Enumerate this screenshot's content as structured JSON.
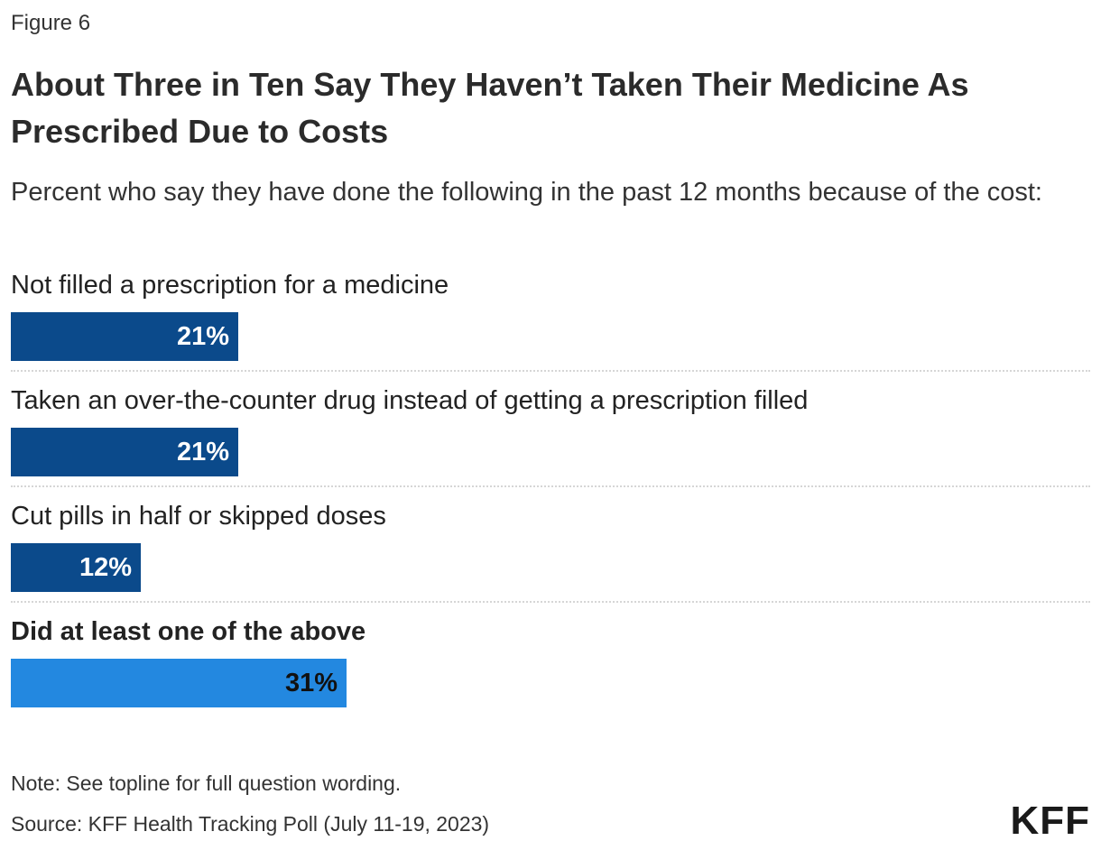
{
  "header": {
    "figure_label": "Figure 6",
    "title": "About Three in Ten Say They Haven’t Taken Their Medicine As Prescribed Due to Costs",
    "subtitle": "Percent who say they have done the following in the past 12 months because of the cost:"
  },
  "chart_data": {
    "type": "bar",
    "orientation": "horizontal",
    "xlim": [
      0,
      100
    ],
    "grid": false,
    "categories": [
      "Not filled a prescription for a medicine",
      "Taken an over-the-counter drug instead of getting a prescription filled",
      "Cut pills in half or skipped doses",
      "Did at least one of the above"
    ],
    "values": [
      21,
      21,
      12,
      31
    ],
    "value_labels": [
      "21%",
      "21%",
      "12%",
      "31%"
    ],
    "bar_colors": [
      "#0b4a8b",
      "#0b4a8b",
      "#0b4a8b",
      "#2388e0"
    ],
    "value_label_colors": [
      "#ffffff",
      "#ffffff",
      "#ffffff",
      "#111111"
    ],
    "bold_categories": [
      false,
      false,
      false,
      true
    ]
  },
  "footer": {
    "note": "Note: See topline for full question wording.",
    "source": "Source: KFF Health Tracking Poll (July 11-19, 2023)",
    "logo": "KFF"
  }
}
